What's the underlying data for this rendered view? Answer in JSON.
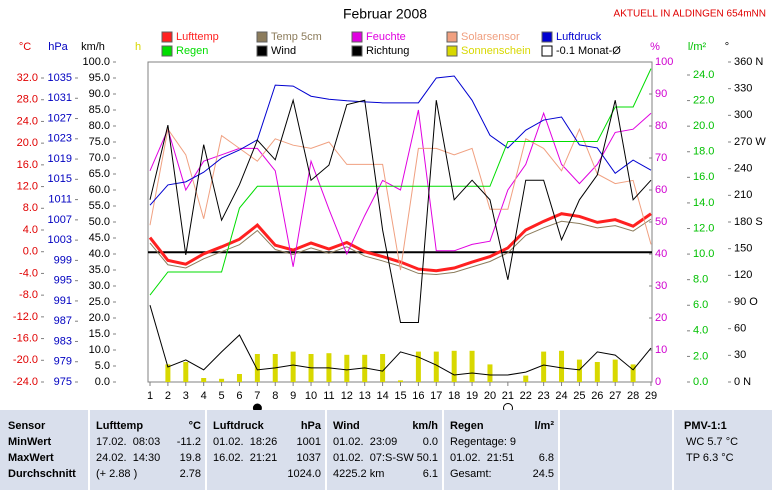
{
  "chart_data": {
    "type": "line",
    "title": "Februar 2008",
    "note": "AKTUELL IN ALDINGEN 654mNN",
    "x": [
      1,
      2,
      3,
      4,
      5,
      6,
      7,
      8,
      9,
      10,
      11,
      12,
      13,
      14,
      15,
      16,
      17,
      18,
      19,
      20,
      21,
      22,
      23,
      24,
      25,
      26,
      27,
      28,
      29
    ],
    "xlim": [
      1,
      29
    ],
    "xticks": [
      1,
      2,
      3,
      4,
      5,
      6,
      7,
      8,
      9,
      10,
      11,
      12,
      13,
      14,
      15,
      16,
      17,
      18,
      19,
      20,
      21,
      22,
      23,
      24,
      25,
      26,
      27,
      28,
      29
    ],
    "axes": [
      {
        "id": "temp",
        "label": "°C",
        "color": "#e00000",
        "lim": [
          -24,
          32
        ],
        "ticks": [
          {
            "value": 32,
            "label": "32.0"
          },
          {
            "value": 28,
            "label": "28.0"
          },
          {
            "value": 24,
            "label": "24.0"
          },
          {
            "value": 20,
            "label": "20.0"
          },
          {
            "value": 16,
            "label": "16.0"
          },
          {
            "value": 12,
            "label": "12.0"
          },
          {
            "value": 8,
            "label": "8.0"
          },
          {
            "value": 4,
            "label": "4.0"
          },
          {
            "value": 0,
            "label": "0.0"
          },
          {
            "value": -4,
            "label": "-4.0"
          },
          {
            "value": -8,
            "label": "-8.0"
          },
          {
            "value": -12,
            "label": "-12.0"
          },
          {
            "value": -16,
            "label": "-16.0"
          },
          {
            "value": -20,
            "label": "-20.0"
          },
          {
            "value": -24,
            "label": "-24.0"
          }
        ]
      },
      {
        "id": "hpa",
        "label": "hPa",
        "color": "#0000c0",
        "lim": [
          975,
          1035
        ],
        "ticks": [
          1035,
          1031,
          1027,
          1023,
          1019,
          1015,
          1011,
          1007,
          1003,
          999,
          995,
          991,
          987,
          983,
          979,
          975
        ]
      },
      {
        "id": "kmh",
        "label": "km/h",
        "color": "#000000",
        "lim": [
          0,
          100
        ],
        "ticks": [
          {
            "value": 100,
            "label": "100.0"
          },
          {
            "value": 95,
            "label": "95.0"
          },
          {
            "value": 90,
            "label": "90.0"
          },
          {
            "value": 85,
            "label": "85.0"
          },
          {
            "value": 80,
            "label": "80.0"
          },
          {
            "value": 75,
            "label": "75.0"
          },
          {
            "value": 70,
            "label": "70.0"
          },
          {
            "value": 65,
            "label": "65.0"
          },
          {
            "value": 60,
            "label": "60.0"
          },
          {
            "value": 55,
            "label": "55.0"
          },
          {
            "value": 50,
            "label": "50.0"
          },
          {
            "value": 45,
            "label": "45.0"
          },
          {
            "value": 40,
            "label": "40.0"
          },
          {
            "value": 35,
            "label": "35.0"
          },
          {
            "value": 30,
            "label": "30.0"
          },
          {
            "value": 25,
            "label": "25.0"
          },
          {
            "value": 20,
            "label": "20.0"
          },
          {
            "value": 15,
            "label": "15.0"
          },
          {
            "value": 10,
            "label": "10.0"
          },
          {
            "value": 5,
            "label": "5.0"
          },
          {
            "value": 0,
            "label": "0.0"
          }
        ]
      },
      {
        "id": "sun",
        "label": "h",
        "color": "#d8d800",
        "lim": [
          0,
          40
        ],
        "ticks": []
      },
      {
        "id": "pct",
        "label": "%",
        "color": "#d000d0",
        "lim": [
          0,
          100
        ],
        "ticks": [
          100,
          90,
          80,
          70,
          60,
          50,
          40,
          30,
          20,
          10,
          0
        ]
      },
      {
        "id": "rain",
        "label": "l/m²",
        "color": "#00c000",
        "lim": [
          0,
          24
        ],
        "ticks": [
          {
            "value": 24,
            "label": "24.0"
          },
          {
            "value": 22,
            "label": "22.0"
          },
          {
            "value": 20,
            "label": "20.0"
          },
          {
            "value": 18,
            "label": "18.0"
          },
          {
            "value": 16,
            "label": "16.0"
          },
          {
            "value": 14,
            "label": "14.0"
          },
          {
            "value": 12,
            "label": "12.0"
          },
          {
            "value": 10,
            "label": "10.0"
          },
          {
            "value": 8,
            "label": "8.0"
          },
          {
            "value": 6,
            "label": "6.0"
          },
          {
            "value": 4,
            "label": "4.0"
          },
          {
            "value": 2,
            "label": "2.0"
          },
          {
            "value": 0,
            "label": "0.0"
          }
        ]
      },
      {
        "id": "dir",
        "label": "°",
        "color": "#000000",
        "lim": [
          0,
          360
        ],
        "ticks": [
          {
            "value": 360,
            "label": "360 N"
          },
          330,
          300,
          {
            "value": 270,
            "label": "270 W"
          },
          240,
          210,
          {
            "value": 180,
            "label": "180 S"
          },
          150,
          120,
          {
            "value": 90,
            "label": "90  O"
          },
          60,
          30,
          {
            "value": 0,
            "label": "0   N"
          }
        ]
      }
    ],
    "series": [
      {
        "name": "Lufttemp",
        "color": "#ff2020",
        "axis": "temp",
        "kind": "line",
        "values": [
          2.6,
          -1.6,
          -2.3,
          -0.4,
          0.9,
          2.3,
          4.9,
          1.2,
          0.3,
          1.6,
          0.5,
          1.7,
          0,
          -0.9,
          -1.9,
          -3.2,
          -3.5,
          -3.0,
          -1.9,
          -0.9,
          0.7,
          4.0,
          5.6,
          7.0,
          6.5,
          5.4,
          5.9,
          4.7,
          7.0
        ]
      },
      {
        "name": "Temp 5cm",
        "color": "#8c7c5c",
        "axis": "temp",
        "kind": "line",
        "values": [
          1.6,
          -2.4,
          -3.0,
          -1.3,
          0.0,
          1.3,
          3.9,
          0.4,
          -0.5,
          0.7,
          -0.3,
          0.9,
          -0.8,
          -1.7,
          -2.7,
          -4.0,
          -4.2,
          -3.8,
          -2.8,
          -1.8,
          -0.2,
          3.0,
          4.4,
          5.6,
          5.2,
          4.4,
          4.8,
          3.8,
          6.0
        ]
      },
      {
        "name": "Feuchte",
        "color": "#e000e0",
        "axis": "pct",
        "kind": "line",
        "values": [
          66,
          79,
          60,
          69,
          71,
          73,
          73,
          66,
          36,
          69,
          54,
          40,
          52,
          63,
          60,
          85,
          41,
          41,
          43,
          44,
          60,
          68,
          84,
          68,
          62,
          68,
          78,
          79,
          84
        ]
      },
      {
        "name": "Solarsensor",
        "color": "#f0a080",
        "axis": "pct",
        "kind": "line",
        "values": [
          49,
          79,
          71,
          51,
          77,
          73,
          69,
          76,
          74,
          73,
          75,
          68,
          68,
          68,
          35,
          73,
          73,
          71,
          73,
          54,
          54,
          76,
          73,
          66,
          79,
          65,
          62,
          63,
          43
        ]
      },
      {
        "name": "Luftdruck",
        "color": "#0000d0",
        "axis": "hpa",
        "kind": "line",
        "values": [
          1009.9,
          1013.9,
          1014.5,
          1016.4,
          1019.2,
          1020.8,
          1022.8,
          1033.6,
          1033.4,
          1031.4,
          1030.8,
          1030.5,
          1030.3,
          1030.1,
          1030.1,
          1030.1,
          1035.0,
          1035.4,
          1030.6,
          1023.7,
          1021.2,
          1024.7,
          1026.7,
          1027.3,
          1021.8,
          1021.2,
          1016.2,
          1018.8,
          1016.8
        ]
      },
      {
        "name": "Regen",
        "color": "#00dd00",
        "axis": "rain",
        "kind": "line",
        "values": [
          6.8,
          8.6,
          8.6,
          8.6,
          8.6,
          13.6,
          15.3,
          15.3,
          15.3,
          15.3,
          15.3,
          15.3,
          15.3,
          15.3,
          15.3,
          15.3,
          15.3,
          15.3,
          15.3,
          15.3,
          18.8,
          18.8,
          18.8,
          18.8,
          18.8,
          18.8,
          21.5,
          21.5,
          24.5
        ]
      },
      {
        "name": "Wind",
        "color": "#000000",
        "axis": "kmh",
        "kind": "line",
        "values": [
          24,
          4.7,
          6.9,
          3.8,
          9.4,
          14.7,
          3.8,
          4.4,
          5.3,
          4.4,
          4.4,
          3.8,
          4.4,
          3.4,
          9.4,
          7.8,
          5.3,
          2.2,
          2.8,
          2.2,
          2.2,
          3.1,
          5.3,
          4.4,
          3.8,
          9.4,
          8.4,
          3.8,
          10.6
        ]
      },
      {
        "name": "Richtung",
        "color": "#000000",
        "axis": "dir",
        "kind": "line",
        "values": [
          205,
          289,
          143,
          267,
          182,
          222,
          272,
          250,
          317,
          227,
          244,
          312,
          317,
          171,
          67,
          67,
          317,
          205,
          227,
          205,
          115,
          227,
          227,
          160,
          205,
          233,
          317,
          205,
          227
        ]
      },
      {
        "name": "Sonnenschein",
        "color": "#d8d800",
        "axis": "sun",
        "kind": "bar",
        "values": [
          0,
          2.2,
          2.5,
          0.5,
          0.4,
          1.0,
          3.5,
          3.5,
          3.8,
          3.5,
          3.6,
          3.4,
          3.4,
          3.5,
          0.2,
          3.8,
          3.8,
          3.9,
          3.9,
          2.2,
          0,
          0.8,
          3.8,
          3.9,
          2.8,
          2.5,
          2.8,
          2.2,
          0
        ]
      }
    ],
    "mean": {
      "name": "-0.1 Monat-Ø",
      "value": -0.1,
      "axis": "temp",
      "color": "#000000"
    }
  },
  "table": {
    "sensor": {
      "header": "Sensor",
      "rows": [
        "MinWert",
        "MaxWert",
        "Durchschnitt"
      ]
    },
    "columns": [
      {
        "name": "Lufttemp",
        "unit": "°C",
        "rows": [
          {
            "text": "17.02.  08:03",
            "value": "-11.2"
          },
          {
            "text": "24.02.  14:30",
            "value": "19.8"
          },
          {
            "text": "(+ 2.88 )",
            "value": "2.78"
          }
        ]
      },
      {
        "name": "Luftdruck",
        "unit": "hPa",
        "rows": [
          {
            "text": "01.02.  18:26",
            "value": "1001"
          },
          {
            "text": "16.02.  21:21",
            "value": "1037"
          },
          {
            "value": "1024.0"
          }
        ]
      },
      {
        "name": "Wind",
        "unit": "km/h",
        "rows": [
          {
            "text": "01.02.  23:09",
            "value": "0.0"
          },
          {
            "text": "01.02.  07:S-SW",
            "value": "50.1"
          },
          {
            "text": "4225.2 km",
            "value": "6.1"
          }
        ]
      },
      {
        "name": "Regen",
        "unit": "l/m²",
        "rows": [
          {
            "text": "Regentage: 9"
          },
          {
            "text": "01.02.  21:51",
            "value": "6.8"
          },
          {
            "text": "Gesamt:",
            "value": "24.5"
          }
        ]
      }
    ],
    "pmv": {
      "header": "PMV-1:1",
      "rows": [
        "WC 5.7 °C",
        "TP 6.3 °C"
      ]
    }
  }
}
